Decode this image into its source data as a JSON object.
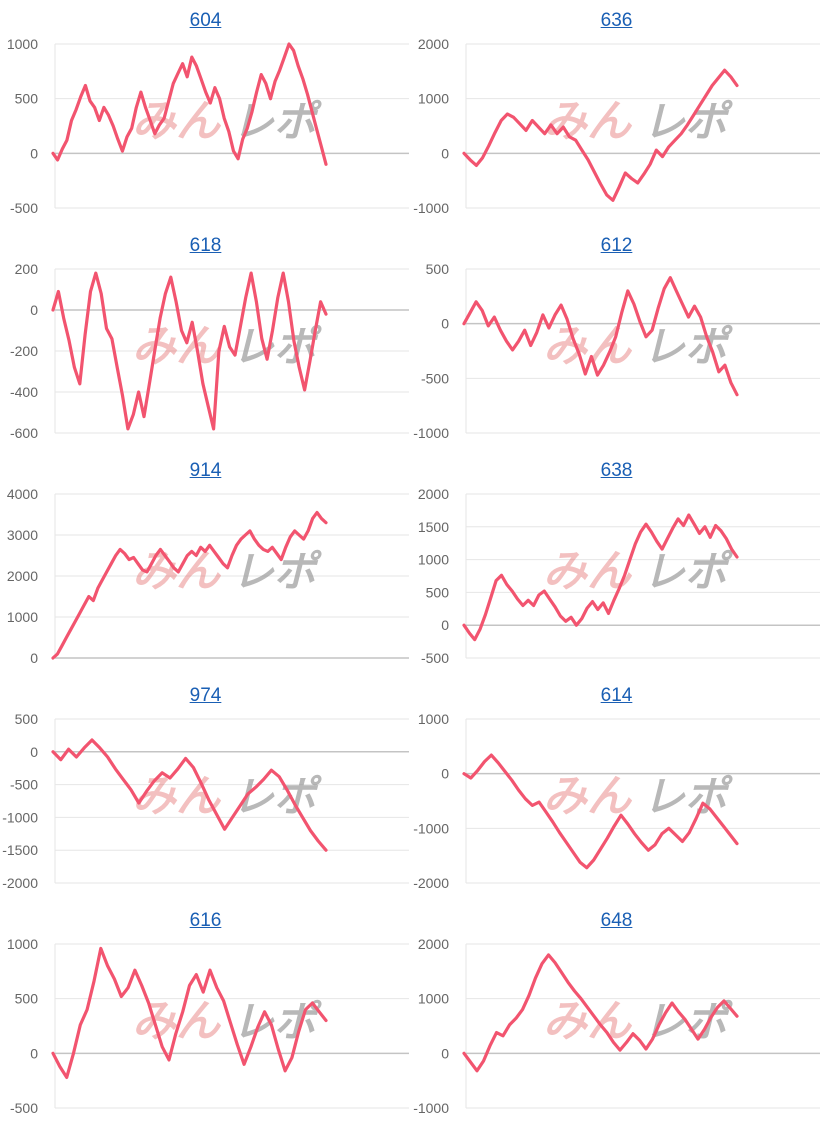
{
  "watermark": {
    "logo_text": "みんレポ"
  },
  "colors": {
    "line": "#f2546f",
    "grid": "#e6e6e6",
    "zero": "#c4c4c4",
    "title": "#1a5fb4",
    "tick": "#666666"
  },
  "chart_data": [
    {
      "type": "line",
      "title": "604",
      "ylim": [
        -500,
        1000
      ],
      "yticks": [
        1000,
        500,
        0,
        -500
      ],
      "values": [
        0,
        -60,
        40,
        120,
        300,
        400,
        520,
        620,
        480,
        420,
        300,
        420,
        350,
        250,
        130,
        20,
        150,
        230,
        420,
        560,
        420,
        300,
        180,
        260,
        320,
        480,
        640,
        730,
        820,
        700,
        880,
        800,
        680,
        560,
        460,
        600,
        500,
        320,
        200,
        20,
        -50,
        130,
        230,
        380,
        560,
        720,
        640,
        500,
        660,
        760,
        880,
        1000,
        940,
        800,
        680,
        540,
        380,
        220,
        60,
        -100
      ]
    },
    {
      "type": "line",
      "title": "636",
      "ylim": [
        -1000,
        2000
      ],
      "yticks": [
        2000,
        1000,
        0,
        -1000
      ],
      "values": [
        0,
        -120,
        -220,
        -80,
        140,
        380,
        600,
        720,
        660,
        540,
        420,
        600,
        480,
        360,
        520,
        360,
        480,
        300,
        240,
        60,
        -120,
        -340,
        -560,
        -760,
        -860,
        -620,
        -360,
        -460,
        -540,
        -380,
        -200,
        60,
        -60,
        120,
        240,
        360,
        520,
        700,
        880,
        1060,
        1240,
        1380,
        1520,
        1400,
        1240
      ]
    },
    {
      "type": "line",
      "title": "618",
      "ylim": [
        -600,
        200
      ],
      "yticks": [
        200,
        0,
        -200,
        -400,
        -600
      ],
      "values": [
        0,
        90,
        -40,
        -150,
        -280,
        -360,
        -120,
        90,
        180,
        80,
        -90,
        -140,
        -280,
        -420,
        -580,
        -510,
        -400,
        -520,
        -360,
        -200,
        -40,
        80,
        160,
        40,
        -100,
        -160,
        -60,
        -200,
        -360,
        -470,
        -580,
        -200,
        -80,
        -180,
        -220,
        -80,
        60,
        180,
        40,
        -140,
        -240,
        -100,
        60,
        180,
        40,
        -150,
        -280,
        -390,
        -250,
        -100,
        40,
        -20
      ]
    },
    {
      "type": "line",
      "title": "612",
      "ylim": [
        -1000,
        500
      ],
      "yticks": [
        500,
        0,
        -500,
        -1000
      ],
      "values": [
        0,
        100,
        200,
        120,
        -20,
        60,
        -60,
        -160,
        -240,
        -160,
        -60,
        -200,
        -80,
        80,
        -40,
        80,
        170,
        40,
        -140,
        -280,
        -460,
        -300,
        -470,
        -380,
        -260,
        -120,
        100,
        300,
        180,
        20,
        -120,
        -60,
        140,
        320,
        420,
        300,
        180,
        60,
        160,
        60,
        -120,
        -260,
        -440,
        -380,
        -540,
        -650
      ]
    },
    {
      "type": "line",
      "title": "914",
      "ylim": [
        0,
        4000
      ],
      "yticks": [
        4000,
        3000,
        2000,
        1000,
        0
      ],
      "values": [
        0,
        100,
        300,
        500,
        700,
        900,
        1100,
        1300,
        1500,
        1400,
        1700,
        1900,
        2100,
        2300,
        2500,
        2650,
        2550,
        2400,
        2450,
        2300,
        2150,
        2100,
        2300,
        2500,
        2650,
        2500,
        2350,
        2200,
        2100,
        2300,
        2500,
        2600,
        2500,
        2700,
        2600,
        2750,
        2600,
        2450,
        2300,
        2200,
        2500,
        2750,
        2900,
        3000,
        3100,
        2900,
        2750,
        2650,
        2600,
        2700,
        2550,
        2400,
        2700,
        2950,
        3100,
        3000,
        2900,
        3100,
        3400,
        3550,
        3400,
        3300
      ]
    },
    {
      "type": "line",
      "title": "638",
      "ylim": [
        -500,
        2000
      ],
      "yticks": [
        2000,
        1500,
        1000,
        500,
        0,
        -500
      ],
      "values": [
        0,
        -120,
        -220,
        -60,
        160,
        420,
        680,
        760,
        620,
        520,
        400,
        300,
        380,
        300,
        460,
        520,
        400,
        280,
        140,
        60,
        120,
        0,
        100,
        260,
        360,
        240,
        340,
        180,
        380,
        560,
        760,
        1000,
        1240,
        1420,
        1540,
        1420,
        1280,
        1160,
        1320,
        1480,
        1620,
        1520,
        1680,
        1540,
        1400,
        1500,
        1340,
        1520,
        1440,
        1320,
        1160,
        1040
      ]
    },
    {
      "type": "line",
      "title": "974",
      "ylim": [
        -2000,
        500
      ],
      "yticks": [
        500,
        0,
        -500,
        -1000,
        -1500,
        -2000
      ],
      "values": [
        0,
        -120,
        40,
        -80,
        60,
        180,
        60,
        -80,
        -260,
        -420,
        -580,
        -780,
        -600,
        -440,
        -320,
        -400,
        -260,
        -100,
        -240,
        -480,
        -740,
        -960,
        -1180,
        -1000,
        -820,
        -640,
        -540,
        -420,
        -280,
        -380,
        -580,
        -800,
        -1000,
        -1200,
        -1360,
        -1500
      ]
    },
    {
      "type": "line",
      "title": "614",
      "ylim": [
        -2000,
        1000
      ],
      "yticks": [
        1000,
        0,
        -1000,
        -2000
      ],
      "values": [
        0,
        -80,
        60,
        220,
        340,
        200,
        40,
        -120,
        -300,
        -460,
        -580,
        -520,
        -700,
        -880,
        -1080,
        -1260,
        -1440,
        -1620,
        -1720,
        -1580,
        -1380,
        -1180,
        -960,
        -760,
        -920,
        -1100,
        -1260,
        -1400,
        -1300,
        -1100,
        -1000,
        -1120,
        -1240,
        -1080,
        -820,
        -540,
        -640,
        -800,
        -960,
        -1120,
        -1280
      ]
    },
    {
      "type": "line",
      "title": "616",
      "ylim": [
        -500,
        1000
      ],
      "yticks": [
        1000,
        500,
        0,
        -500
      ],
      "values": [
        0,
        -120,
        -220,
        0,
        260,
        400,
        660,
        960,
        800,
        680,
        520,
        600,
        760,
        620,
        460,
        260,
        60,
        -60,
        180,
        380,
        620,
        720,
        560,
        760,
        600,
        480,
        280,
        80,
        -100,
        60,
        240,
        380,
        260,
        40,
        -160,
        -40,
        200,
        400,
        460,
        380,
        300
      ]
    },
    {
      "type": "line",
      "title": "648",
      "ylim": [
        -1000,
        2000
      ],
      "yticks": [
        2000,
        1000,
        0,
        -1000
      ],
      "values": [
        0,
        -160,
        -320,
        -140,
        140,
        380,
        320,
        520,
        640,
        800,
        1060,
        1380,
        1640,
        1800,
        1660,
        1480,
        1300,
        1140,
        1000,
        840,
        680,
        520,
        380,
        200,
        60,
        200,
        360,
        240,
        80,
        260,
        520,
        740,
        920,
        760,
        620,
        440,
        260,
        440,
        660,
        840,
        960,
        820,
        680
      ]
    }
  ]
}
